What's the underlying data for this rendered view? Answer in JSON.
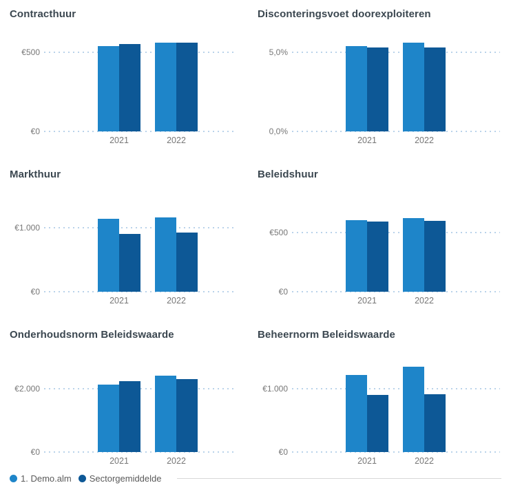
{
  "colors": {
    "series1": "#1E85C9",
    "series2": "#0D5896",
    "gridline": "#b3cfe8",
    "title_text": "#3b4750",
    "axis_text": "#767676",
    "legend_text": "#5a5a5a",
    "legend_line": "#d8d8d8",
    "background": "#ffffff"
  },
  "legend": {
    "items": [
      {
        "label": "1. Demo.alm",
        "color": "#1E85C9"
      },
      {
        "label": "Sectorgemiddelde",
        "color": "#0D5896"
      }
    ]
  },
  "chart_data": [
    {
      "type": "bar",
      "title": "Contracthuur",
      "categories": [
        "2021",
        "2022"
      ],
      "series": [
        {
          "name": "1. Demo.alm",
          "values": [
            540,
            560
          ]
        },
        {
          "name": "Sectorgemiddelde",
          "values": [
            550,
            560
          ]
        }
      ],
      "y_ticks": [
        {
          "value": 0,
          "label": "€0"
        },
        {
          "value": 500,
          "label": "€500"
        }
      ],
      "ylim": [
        0,
        565
      ],
      "grid": true,
      "legend_position": "bottom-shared"
    },
    {
      "type": "bar",
      "title": "Disconteringsvoet doorexploiteren",
      "categories": [
        "2021",
        "2022"
      ],
      "series": [
        {
          "name": "1. Demo.alm",
          "values": [
            5.4,
            5.6
          ]
        },
        {
          "name": "Sectorgemiddelde",
          "values": [
            5.3,
            5.3
          ]
        }
      ],
      "y_ticks": [
        {
          "value": 0,
          "label": "0,0%"
        },
        {
          "value": 5,
          "label": "5,0%"
        }
      ],
      "ylim": [
        0,
        5.65
      ],
      "grid": true,
      "legend_position": "bottom-shared"
    },
    {
      "type": "bar",
      "title": "Markthuur",
      "categories": [
        "2021",
        "2022"
      ],
      "series": [
        {
          "name": "1. Demo.alm",
          "values": [
            1140,
            1160
          ]
        },
        {
          "name": "Sectorgemiddelde",
          "values": [
            900,
            930
          ]
        }
      ],
      "y_ticks": [
        {
          "value": 0,
          "label": "€0"
        },
        {
          "value": 1000,
          "label": "€1.000"
        }
      ],
      "ylim": [
        0,
        1400
      ],
      "grid": true,
      "legend_position": "bottom-shared"
    },
    {
      "type": "bar",
      "title": "Beleidshuur",
      "categories": [
        "2021",
        "2022"
      ],
      "series": [
        {
          "name": "1. Demo.alm",
          "values": [
            605,
            620
          ]
        },
        {
          "name": "Sectorgemiddelde",
          "values": [
            595,
            600
          ]
        }
      ],
      "y_ticks": [
        {
          "value": 0,
          "label": "€0"
        },
        {
          "value": 500,
          "label": "€500"
        }
      ],
      "ylim": [
        0,
        755
      ],
      "grid": true,
      "legend_position": "bottom-shared"
    },
    {
      "type": "bar",
      "title": "Onderhoudsnorm Beleidswaarde",
      "categories": [
        "2021",
        "2022"
      ],
      "series": [
        {
          "name": "1. Demo.alm",
          "values": [
            2130,
            2410
          ]
        },
        {
          "name": "Sectorgemiddelde",
          "values": [
            2240,
            2300
          ]
        }
      ],
      "y_ticks": [
        {
          "value": 0,
          "label": "€0"
        },
        {
          "value": 2000,
          "label": "€2.000"
        }
      ],
      "ylim": [
        0,
        2830
      ],
      "grid": true,
      "legend_position": "bottom-shared"
    },
    {
      "type": "bar",
      "title": "Beheernorm Beleidswaarde",
      "categories": [
        "2021",
        "2022"
      ],
      "series": [
        {
          "name": "1. Demo.alm",
          "values": [
            1220,
            1350
          ]
        },
        {
          "name": "Sectorgemiddelde",
          "values": [
            900,
            910
          ]
        }
      ],
      "y_ticks": [
        {
          "value": 0,
          "label": "€0"
        },
        {
          "value": 1000,
          "label": "€1.000"
        }
      ],
      "ylim": [
        0,
        1415
      ],
      "grid": true,
      "legend_position": "bottom-shared"
    }
  ]
}
